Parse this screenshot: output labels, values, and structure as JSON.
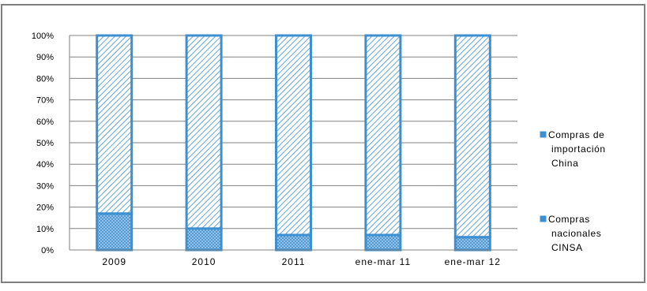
{
  "chart_data": {
    "type": "bar",
    "stacked": true,
    "percent_stacked": true,
    "categories": [
      "2009",
      "2010",
      "2011",
      "ene-mar 11",
      "ene-mar 12"
    ],
    "series": [
      {
        "name": "Compras nacionales CINSA",
        "values": [
          17,
          10,
          7,
          7,
          6
        ],
        "color": "#3d8fd0",
        "pattern": "crosshatch"
      },
      {
        "name": "Compras de importación China",
        "values": [
          83,
          90,
          93,
          93,
          94
        ],
        "color": "#3d8fd0",
        "pattern": "diagonal"
      }
    ],
    "ylim": [
      0,
      100
    ],
    "yticks": [
      "0%",
      "10%",
      "20%",
      "30%",
      "40%",
      "50%",
      "60%",
      "70%",
      "80%",
      "90%",
      "100%"
    ],
    "grid": true,
    "legend_position": "right",
    "legend": [
      {
        "lines": [
          "Compras de",
          "importación",
          "China"
        ]
      },
      {
        "lines": [
          "Compras",
          "nacionales",
          "CINSA"
        ]
      }
    ]
  }
}
